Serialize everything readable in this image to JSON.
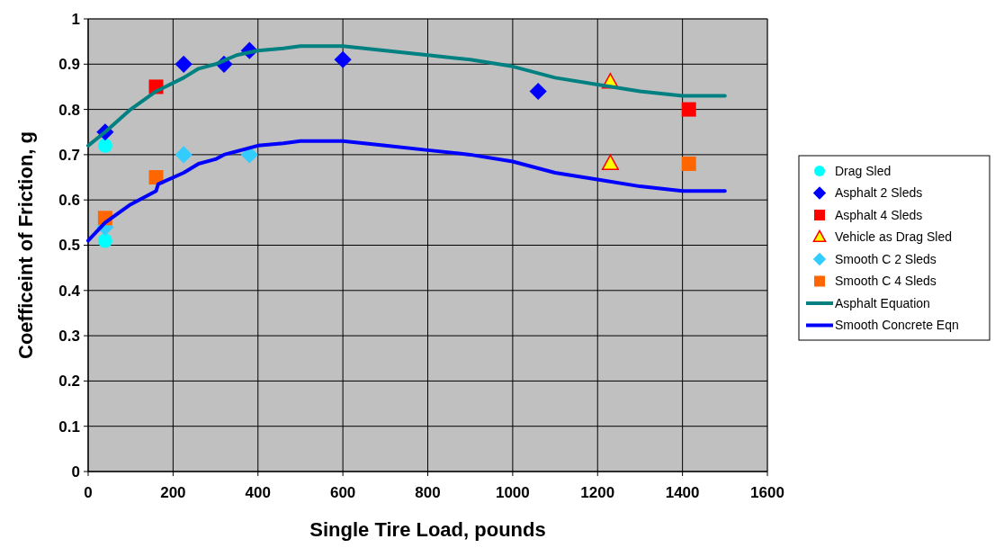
{
  "chart_data": {
    "type": "scatter",
    "xlabel": "Single Tire Load, pounds",
    "ylabel": "Coefficeint of Friction, g",
    "xlim": [
      0,
      1600
    ],
    "xticks": [
      0,
      200,
      400,
      600,
      800,
      1000,
      1200,
      1400,
      1600
    ],
    "ylim": [
      0,
      1
    ],
    "yticks": [
      0,
      0.1,
      0.2,
      0.3,
      0.4,
      0.5,
      0.6,
      0.7,
      0.8,
      0.9,
      1
    ],
    "grid": true,
    "legend": "right",
    "series": [
      {
        "name": "Drag Sled",
        "color": "#00ffff",
        "marker": "circle",
        "x": [
          40,
          40
        ],
        "values": [
          0.72,
          0.51
        ]
      },
      {
        "name": "Asphalt 2 Sleds",
        "color": "#0000ff",
        "marker": "diamond",
        "x": [
          40,
          225,
          320,
          380,
          600,
          1060
        ],
        "values": [
          0.75,
          0.9,
          0.9,
          0.93,
          0.91,
          0.84
        ]
      },
      {
        "name": "Asphalt 4 Sleds",
        "color": "#ff0000",
        "marker": "square",
        "x": [
          160,
          1415
        ],
        "values": [
          0.85,
          0.8
        ]
      },
      {
        "name": "Vehicle as Drag Sled",
        "color": "#ffff00",
        "marker": "triangle",
        "x": [
          1230,
          1230
        ],
        "values": [
          0.86,
          0.68
        ]
      },
      {
        "name": "Smooth C 2 Sleds",
        "color": "#33ccff",
        "marker": "diamond",
        "x": [
          40,
          225,
          380
        ],
        "values": [
          0.54,
          0.7,
          0.7
        ]
      },
      {
        "name": "Smooth C 4 Sleds",
        "color": "#ff6600",
        "marker": "square",
        "x": [
          40,
          160,
          1415
        ],
        "values": [
          0.56,
          0.65,
          0.68
        ]
      },
      {
        "name": "Asphalt Equation",
        "type": "line",
        "color": "#008080",
        "marker": "none",
        "x": [
          0,
          40,
          100,
          160,
          225,
          260,
          300,
          350,
          400,
          460,
          500,
          600,
          700,
          800,
          900,
          1000,
          1100,
          1200,
          1300,
          1400,
          1500
        ],
        "values": [
          0.72,
          0.75,
          0.8,
          0.84,
          0.87,
          0.89,
          0.9,
          0.92,
          0.93,
          0.935,
          0.94,
          0.94,
          0.93,
          0.92,
          0.91,
          0.895,
          0.87,
          0.855,
          0.84,
          0.83,
          0.83
        ]
      },
      {
        "name": "Smooth Concrete Eqn",
        "type": "line",
        "color": "#0000ff",
        "marker": "none",
        "x": [
          0,
          40,
          100,
          160,
          165,
          225,
          260,
          300,
          320,
          400,
          460,
          500,
          600,
          700,
          800,
          900,
          1000,
          1100,
          1200,
          1300,
          1400,
          1500
        ],
        "values": [
          0.51,
          0.55,
          0.59,
          0.62,
          0.635,
          0.66,
          0.68,
          0.69,
          0.7,
          0.72,
          0.725,
          0.73,
          0.73,
          0.72,
          0.71,
          0.7,
          0.685,
          0.66,
          0.645,
          0.63,
          0.62,
          0.62
        ]
      }
    ]
  }
}
